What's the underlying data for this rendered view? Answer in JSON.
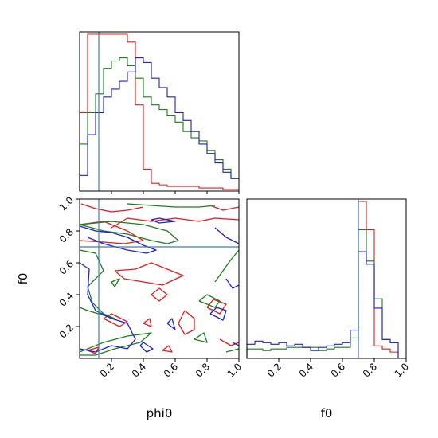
{
  "chart_data": {
    "type": "corner",
    "parameters": [
      "phi0",
      "f0"
    ],
    "xlabels": [
      "phi0",
      "f0"
    ],
    "ylabel_2d": "f0",
    "axis_range": {
      "phi0": [
        0,
        1
      ],
      "f0": [
        0,
        1
      ]
    },
    "ticks": {
      "phi0": [
        "0.2",
        "0.4",
        "0.6",
        "0.8",
        "1.0"
      ],
      "f0": [
        "0.2",
        "0.4",
        "0.6",
        "0.8",
        "1.0"
      ]
    },
    "truth": {
      "phi0": 0.12,
      "f0": 0.7
    },
    "colors": {
      "red": "#e41a1c",
      "green": "#1a7f1a",
      "blue": "#1f1fd6",
      "truth": "#3a7ebf"
    },
    "hist_phi0": {
      "bin_edges": [
        0.0,
        0.05,
        0.1,
        0.15,
        0.2,
        0.25,
        0.3,
        0.35,
        0.4,
        0.45,
        0.5,
        0.55,
        0.6,
        0.65,
        0.7,
        0.75,
        0.8,
        0.85,
        0.9,
        0.95,
        1.0
      ],
      "series": [
        {
          "color": "red",
          "counts": [
            0.5,
            1.0,
            1.0,
            1.0,
            1.0,
            1.0,
            0.95,
            0.55,
            0.14,
            0.05,
            0.04,
            0.03,
            0.03,
            0.03,
            0.03,
            0.02,
            0.02,
            0.02,
            0.01,
            0.01
          ]
        },
        {
          "color": "green",
          "counts": [
            0.3,
            0.5,
            0.62,
            0.78,
            0.83,
            0.85,
            0.8,
            0.72,
            0.6,
            0.55,
            0.52,
            0.48,
            0.44,
            0.38,
            0.34,
            0.32,
            0.26,
            0.2,
            0.14,
            0.08
          ]
        },
        {
          "color": "blue",
          "counts": [
            0.1,
            0.36,
            0.5,
            0.6,
            0.65,
            0.7,
            0.76,
            0.85,
            0.82,
            0.72,
            0.66,
            0.6,
            0.5,
            0.45,
            0.38,
            0.3,
            0.24,
            0.18,
            0.12,
            0.08
          ]
        }
      ]
    },
    "hist_f0": {
      "bin_edges": [
        0.0,
        0.05,
        0.1,
        0.15,
        0.2,
        0.25,
        0.3,
        0.35,
        0.4,
        0.45,
        0.5,
        0.55,
        0.6,
        0.65,
        0.7,
        0.75,
        0.8,
        0.85,
        0.9,
        0.95,
        1.0
      ],
      "series": [
        {
          "color": "red",
          "counts": [
            0.0,
            0.0,
            0.0,
            0.0,
            0.0,
            0.0,
            0.0,
            0.0,
            0.0,
            0.0,
            0.0,
            0.0,
            0.0,
            0.0,
            1.0,
            0.82,
            0.08,
            0.06,
            0.04,
            0.0
          ]
        },
        {
          "color": "green",
          "counts": [
            0.06,
            0.06,
            0.05,
            0.06,
            0.06,
            0.07,
            0.07,
            0.07,
            0.07,
            0.05,
            0.06,
            0.07,
            0.07,
            0.13,
            0.82,
            0.62,
            0.38,
            0.12,
            0.1,
            0.0
          ]
        },
        {
          "color": "blue",
          "counts": [
            0.09,
            0.11,
            0.1,
            0.09,
            0.1,
            0.08,
            0.09,
            0.07,
            0.05,
            0.07,
            0.08,
            0.09,
            0.1,
            0.18,
            0.68,
            0.6,
            0.32,
            0.12,
            0.1,
            0.0
          ]
        }
      ]
    },
    "contours_2d": [
      {
        "color": "red",
        "paths": [
          [
            [
              0.01,
              0.97
            ],
            [
              0.1,
              0.94
            ],
            [
              0.2,
              0.92
            ],
            [
              0.3,
              0.93
            ],
            [
              0.4,
              0.95
            ]
          ],
          [
            [
              0.2,
              0.82
            ],
            [
              0.3,
              0.88
            ],
            [
              0.45,
              0.86
            ],
            [
              0.6,
              0.88
            ],
            [
              0.75,
              0.86
            ],
            [
              0.85,
              0.88
            ],
            [
              1.0,
              0.87
            ]
          ],
          [
            [
              0.0,
              0.84
            ],
            [
              0.15,
              0.86
            ],
            [
              0.3,
              0.8
            ],
            [
              0.4,
              0.74
            ],
            [
              0.28,
              0.72
            ],
            [
              0.15,
              0.73
            ],
            [
              0.0,
              0.74
            ]
          ],
          [
            [
              0.22,
              0.55
            ],
            [
              0.35,
              0.56
            ],
            [
              0.45,
              0.6
            ],
            [
              0.55,
              0.56
            ],
            [
              0.65,
              0.52
            ],
            [
              0.52,
              0.46
            ],
            [
              0.4,
              0.48
            ],
            [
              0.28,
              0.5
            ],
            [
              0.22,
              0.55
            ]
          ],
          [
            [
              0.45,
              0.4
            ],
            [
              0.5,
              0.36
            ],
            [
              0.55,
              0.4
            ],
            [
              0.5,
              0.44
            ],
            [
              0.45,
              0.4
            ]
          ],
          [
            [
              0.66,
              0.3
            ],
            [
              0.72,
              0.25
            ],
            [
              0.72,
              0.18
            ],
            [
              0.66,
              0.15
            ],
            [
              0.62,
              0.22
            ],
            [
              0.66,
              0.3
            ]
          ],
          [
            [
              0.15,
              0.25
            ],
            [
              0.25,
              0.2
            ],
            [
              0.3,
              0.23
            ],
            [
              0.2,
              0.28
            ],
            [
              0.15,
              0.25
            ]
          ],
          [
            [
              0.8,
              0.32
            ],
            [
              0.88,
              0.28
            ],
            [
              0.92,
              0.34
            ],
            [
              0.84,
              0.37
            ],
            [
              0.8,
              0.32
            ]
          ],
          [
            [
              0.4,
              0.22
            ],
            [
              0.45,
              0.2
            ],
            [
              0.44,
              0.25
            ],
            [
              0.4,
              0.22
            ]
          ],
          [
            [
              0.82,
              0.96
            ],
            [
              0.9,
              0.93
            ],
            [
              1.0,
              0.95
            ]
          ],
          [
            [
              0.88,
              0.12
            ],
            [
              0.95,
              0.08
            ],
            [
              1.0,
              0.1
            ]
          ],
          [
            [
              0.52,
              0.05
            ],
            [
              0.58,
              0.04
            ],
            [
              0.56,
              0.08
            ],
            [
              0.52,
              0.05
            ]
          ],
          [
            [
              0.05,
              0.05
            ],
            [
              0.1,
              0.03
            ],
            [
              0.12,
              0.07
            ],
            [
              0.05,
              0.05
            ]
          ]
        ]
      },
      {
        "color": "green",
        "paths": [
          [
            [
              0.0,
              0.84
            ],
            [
              0.15,
              0.8
            ],
            [
              0.3,
              0.78
            ],
            [
              0.45,
              0.74
            ],
            [
              0.55,
              0.72
            ],
            [
              0.62,
              0.74
            ],
            [
              0.55,
              0.8
            ],
            [
              0.4,
              0.84
            ],
            [
              0.2,
              0.86
            ],
            [
              0.0,
              0.84
            ]
          ],
          [
            [
              0.0,
              0.68
            ],
            [
              0.1,
              0.66
            ],
            [
              0.15,
              0.55
            ],
            [
              0.05,
              0.45
            ],
            [
              0.08,
              0.35
            ],
            [
              0.15,
              0.28
            ],
            [
              0.22,
              0.25
            ],
            [
              0.05,
              0.3
            ],
            [
              0.0,
              0.32
            ]
          ],
          [
            [
              0.85,
              0.48
            ],
            [
              0.95,
              0.62
            ],
            [
              1.0,
              0.68
            ]
          ],
          [
            [
              0.0,
              0.04
            ],
            [
              0.15,
              0.1
            ],
            [
              0.3,
              0.14
            ],
            [
              0.45,
              0.16
            ],
            [
              0.38,
              0.1
            ],
            [
              0.22,
              0.06
            ],
            [
              0.1,
              0.02
            ],
            [
              0.0,
              0.02
            ]
          ],
          [
            [
              0.3,
              0.97
            ],
            [
              0.45,
              0.96
            ],
            [
              0.6,
              0.95
            ],
            [
              0.75,
              0.95
            ],
            [
              0.85,
              0.96
            ]
          ],
          [
            [
              0.75,
              0.36
            ],
            [
              0.85,
              0.32
            ],
            [
              0.88,
              0.36
            ],
            [
              0.8,
              0.4
            ],
            [
              0.75,
              0.36
            ]
          ],
          [
            [
              0.2,
              0.48
            ],
            [
              0.25,
              0.5
            ],
            [
              0.22,
              0.45
            ],
            [
              0.2,
              0.48
            ]
          ],
          [
            [
              0.72,
              0.12
            ],
            [
              0.8,
              0.1
            ],
            [
              0.78,
              0.16
            ],
            [
              0.72,
              0.12
            ]
          ],
          [
            [
              0.92,
              0.04
            ],
            [
              1.0,
              0.06
            ]
          ]
        ]
      },
      {
        "color": "blue",
        "paths": [
          [
            [
              0.0,
              0.83
            ],
            [
              0.1,
              0.8
            ],
            [
              0.2,
              0.79
            ],
            [
              0.3,
              0.76
            ],
            [
              0.4,
              0.71
            ],
            [
              0.48,
              0.68
            ],
            [
              0.42,
              0.66
            ],
            [
              0.3,
              0.68
            ],
            [
              0.15,
              0.72
            ],
            [
              0.05,
              0.76
            ]
          ],
          [
            [
              0.0,
              0.6
            ],
            [
              0.06,
              0.56
            ],
            [
              0.05,
              0.4
            ],
            [
              0.1,
              0.3
            ],
            [
              0.2,
              0.25
            ],
            [
              0.3,
              0.22
            ],
            [
              0.35,
              0.12
            ],
            [
              0.3,
              0.06
            ],
            [
              0.2,
              0.08
            ],
            [
              0.1,
              0.04
            ],
            [
              0.0,
              0.06
            ]
          ],
          [
            [
              0.5,
              0.88
            ],
            [
              0.6,
              0.86
            ],
            [
              0.5,
              0.85
            ],
            [
              0.45,
              0.87
            ],
            [
              0.5,
              0.88
            ]
          ],
          [
            [
              0.85,
              0.82
            ],
            [
              0.92,
              0.76
            ],
            [
              1.0,
              0.72
            ]
          ],
          [
            [
              0.55,
              0.22
            ],
            [
              0.6,
              0.18
            ],
            [
              0.58,
              0.25
            ],
            [
              0.55,
              0.22
            ]
          ],
          [
            [
              0.82,
              0.28
            ],
            [
              0.9,
              0.24
            ],
            [
              0.92,
              0.3
            ],
            [
              0.86,
              0.32
            ],
            [
              0.82,
              0.28
            ]
          ],
          [
            [
              0.38,
              0.08
            ],
            [
              0.42,
              0.04
            ],
            [
              0.46,
              0.06
            ],
            [
              0.4,
              0.1
            ],
            [
              0.38,
              0.08
            ]
          ],
          [
            [
              0.92,
              0.5
            ],
            [
              0.96,
              0.44
            ],
            [
              1.0,
              0.46
            ]
          ],
          [
            [
              0.96,
              0.1
            ],
            [
              1.0,
              0.08
            ]
          ]
        ]
      }
    ]
  }
}
